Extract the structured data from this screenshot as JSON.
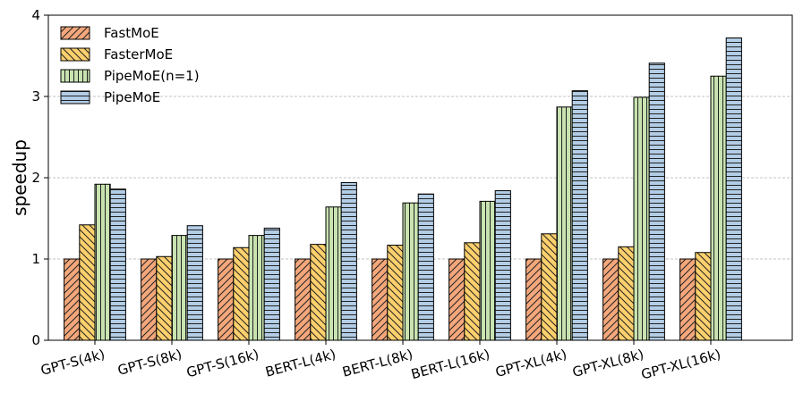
{
  "chart_data": {
    "type": "bar",
    "title": "",
    "xlabel": "",
    "ylabel": "speedup",
    "ylim": [
      0,
      4
    ],
    "yticks": [
      0,
      1,
      2,
      3,
      4
    ],
    "grid": "horizontal dashed",
    "legend_position": "top-left",
    "categories": [
      "GPT-S(4k)",
      "GPT-S(8k)",
      "GPT-S(16k)",
      "BERT-L(4k)",
      "BERT-L(8k)",
      "BERT-L(16k)",
      "GPT-XL(4k)",
      "GPT-XL(8k)",
      "GPT-XL(16k)"
    ],
    "series": [
      {
        "name": "FastMoE",
        "color": "#f4a77b",
        "pattern": "diagonal-forward",
        "values": [
          1.0,
          1.0,
          1.0,
          1.0,
          1.0,
          1.0,
          1.0,
          1.0,
          1.0
        ]
      },
      {
        "name": "FasterMoE",
        "color": "#fcd06d",
        "pattern": "diagonal-back",
        "values": [
          1.42,
          1.03,
          1.14,
          1.18,
          1.17,
          1.2,
          1.31,
          1.15,
          1.08
        ]
      },
      {
        "name": "PipeMoE(n=1)",
        "color": "#c8e3b0",
        "pattern": "vertical-lines",
        "values": [
          1.92,
          1.29,
          1.29,
          1.64,
          1.69,
          1.71,
          2.87,
          2.99,
          3.25
        ]
      },
      {
        "name": "PipeMoE",
        "color": "#b3cde6",
        "pattern": "horizontal-lines",
        "values": [
          1.86,
          1.41,
          1.38,
          1.94,
          1.8,
          1.84,
          3.07,
          3.41,
          3.72
        ]
      }
    ]
  }
}
